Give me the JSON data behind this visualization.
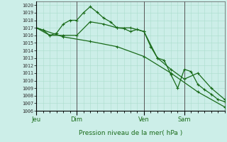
{
  "background_color": "#cceee8",
  "grid_color": "#aaddcc",
  "line_color": "#1a6b1a",
  "xlabel": "Pression niveau de la mer( hPa )",
  "ylim": [
    1006,
    1020.5
  ],
  "yticks": [
    1006,
    1007,
    1008,
    1009,
    1010,
    1011,
    1012,
    1013,
    1014,
    1015,
    1016,
    1017,
    1018,
    1019,
    1020
  ],
  "day_labels": [
    "Jeu",
    "Dim",
    "Ven",
    "Sam"
  ],
  "day_positions": [
    0,
    24,
    64,
    88
  ],
  "xlim": [
    0,
    112
  ],
  "series1_x": [
    0,
    4,
    8,
    12,
    16,
    20,
    24,
    28,
    32,
    36,
    40,
    44,
    48,
    52,
    56,
    60,
    64,
    68,
    72,
    76,
    80,
    84,
    88,
    92,
    96,
    100,
    104,
    108,
    112
  ],
  "series1_y": [
    1017.0,
    1016.7,
    1016.0,
    1016.3,
    1017.5,
    1018.0,
    1018.0,
    1019.0,
    1019.8,
    1019.1,
    1018.3,
    1017.8,
    1017.0,
    1016.9,
    1016.5,
    1016.8,
    1016.5,
    1014.5,
    1013.0,
    1012.7,
    1010.8,
    1009.0,
    1011.5,
    1011.2,
    1009.5,
    1008.8,
    1008.2,
    1007.5,
    1007.2
  ],
  "series2_x": [
    0,
    8,
    16,
    24,
    32,
    40,
    48,
    56,
    64,
    72,
    80,
    88,
    96,
    104,
    112
  ],
  "series2_y": [
    1017.0,
    1016.0,
    1016.0,
    1016.0,
    1017.8,
    1017.5,
    1017.0,
    1017.0,
    1016.5,
    1013.0,
    1011.5,
    1010.2,
    1011.0,
    1009.0,
    1007.5
  ],
  "series3_x": [
    0,
    16,
    32,
    48,
    64,
    80,
    96,
    112
  ],
  "series3_y": [
    1017.0,
    1015.8,
    1015.2,
    1014.5,
    1013.2,
    1011.0,
    1008.5,
    1006.5
  ]
}
